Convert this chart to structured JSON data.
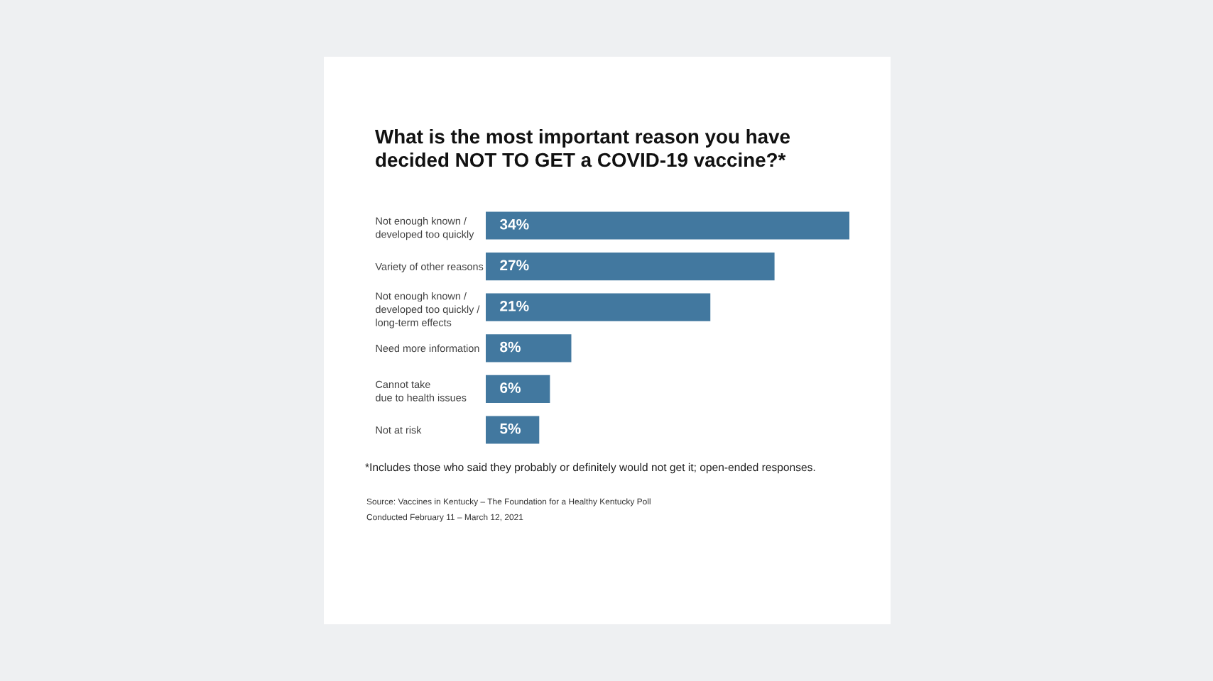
{
  "chart_data": {
    "type": "bar",
    "orientation": "horizontal",
    "title": "What is the most important reason you have\ndecided NOT TO GET a COVID-19 vaccine?*",
    "categories": [
      "Not enough known /\ndeveloped too quickly",
      "Variety of other reasons",
      "Not enough known /\ndeveloped too quickly /\nlong-term effects",
      "Need more information",
      "Cannot take\ndue to health issues",
      "Not at risk"
    ],
    "values": [
      34,
      27,
      21,
      8,
      6,
      5
    ],
    "value_labels": [
      "34%",
      "27%",
      "21%",
      "8%",
      "6%",
      "5%"
    ],
    "color": "#42789f",
    "tick_labels": "y",
    "annotations": [
      "*Includes those who said they probably or definitely would not get it; open-ended responses.",
      "Source: Vaccines in Kentucky – The Foundation for a Healthy Kentucky Poll",
      "Conducted February 11 – March 12, 2021"
    ]
  }
}
